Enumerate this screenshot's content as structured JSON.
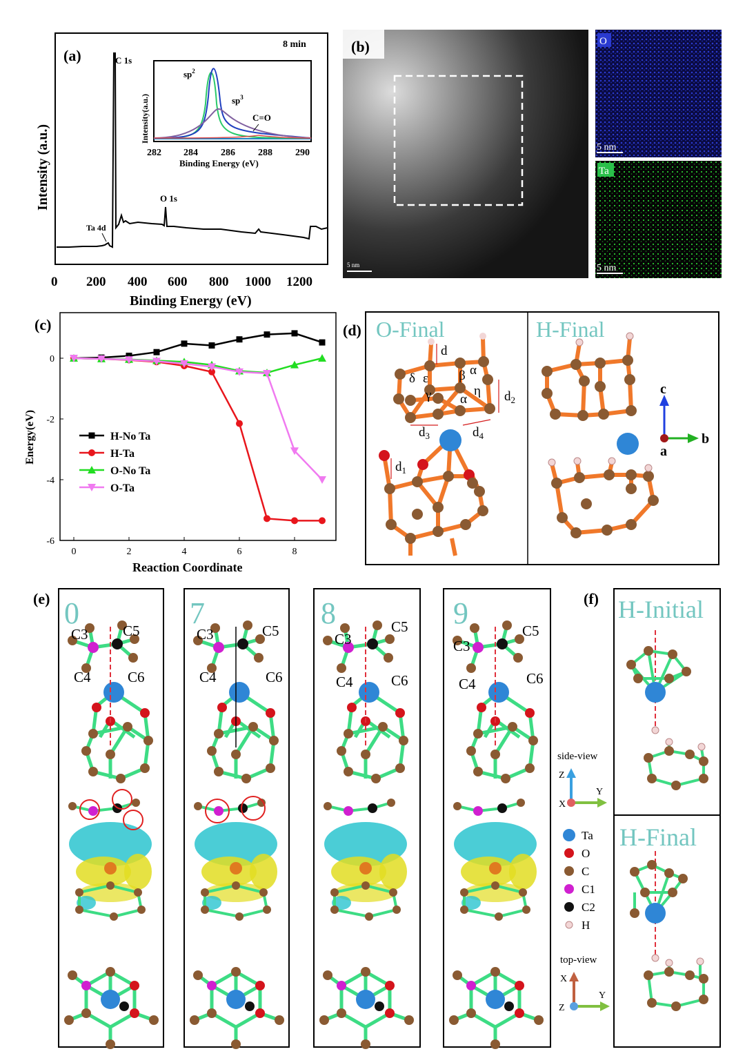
{
  "panels": {
    "a": "(a)",
    "b": "(b)",
    "c": "(c)",
    "d": "(d)",
    "e": "(e)",
    "f": "(f)"
  },
  "a": {
    "time": "8 min",
    "ylabel": "Intensity (a.u.)",
    "xlabel": "Binding Energy (eV)",
    "xticks": [
      "0",
      "200",
      "400",
      "600",
      "800",
      "1000",
      "1200"
    ],
    "peaks": {
      "c1s": "C 1s",
      "o1s": "O 1s",
      "ta4d": "Ta 4d"
    },
    "inset": {
      "ylabel": "Intensity(a.u.)",
      "xlabel": "Binding Energy (eV)",
      "xticks": [
        "282",
        "284",
        "286",
        "288",
        "290"
      ],
      "sp2": "sp",
      "sp2_sup": "2",
      "sp3": "sp",
      "sp3_sup": "3",
      "co": "C=O"
    }
  },
  "b": {
    "scale_main": "5 nm",
    "map_o": {
      "label": "O",
      "scale": "5 nm"
    },
    "map_ta": {
      "label": "Ta",
      "scale": "5 nm"
    }
  },
  "chart_data": {
    "type": "line",
    "xlabel": "Reaction Coordinate",
    "ylabel": "Energy(eV)",
    "xlim": [
      -0.5,
      9.5
    ],
    "ylim": [
      -6,
      1.5
    ],
    "xticks": [
      0,
      2,
      4,
      6,
      8
    ],
    "yticks": [
      0,
      -2,
      -4,
      -6
    ],
    "legend_position": "middle-left",
    "series": [
      {
        "name": "H-No Ta",
        "color": "#000000",
        "marker": "square",
        "x": [
          0,
          1,
          2,
          3,
          4,
          5,
          6,
          7,
          8,
          9
        ],
        "y": [
          0,
          0.02,
          0.08,
          0.2,
          0.48,
          0.42,
          0.62,
          0.78,
          0.82,
          0.52
        ]
      },
      {
        "name": "H-Ta",
        "color": "#e8161c",
        "marker": "circle",
        "x": [
          0,
          1,
          2,
          3,
          4,
          5,
          6,
          7,
          8,
          9
        ],
        "y": [
          0,
          -0.02,
          -0.06,
          -0.12,
          -0.25,
          -0.45,
          -2.15,
          -5.28,
          -5.35,
          -5.35
        ]
      },
      {
        "name": "O-No Ta",
        "color": "#22dd22",
        "marker": "triangle-up",
        "x": [
          0,
          1,
          2,
          3,
          4,
          5,
          6,
          7,
          8,
          9
        ],
        "y": [
          0,
          -0.02,
          -0.04,
          -0.08,
          -0.12,
          -0.22,
          -0.42,
          -0.48,
          -0.22,
          0.0
        ]
      },
      {
        "name": "O-Ta",
        "color": "#f07af0",
        "marker": "triangle-down",
        "x": [
          0,
          1,
          2,
          3,
          4,
          5,
          6,
          7,
          8,
          9
        ],
        "y": [
          0,
          -0.02,
          -0.05,
          -0.1,
          -0.18,
          -0.28,
          -0.45,
          -0.5,
          -3.05,
          -4.0
        ]
      }
    ]
  },
  "d": {
    "o_title": "O-Final",
    "h_title": "H-Final",
    "labels": {
      "d": "d",
      "d1": "d",
      "d1_sub": "1",
      "d2": "d",
      "d2_sub": "2",
      "d3": "d",
      "d3_sub": "3",
      "d4": "d",
      "d4_sub": "4",
      "alpha": "α",
      "beta": "β",
      "gamma": "γ",
      "delta": "δ",
      "epsilon": "ε",
      "eta": "η"
    },
    "axes": {
      "c": "c",
      "b": "b",
      "a": "a"
    }
  },
  "e": {
    "panels": [
      {
        "index": "0"
      },
      {
        "index": "7"
      },
      {
        "index": "8"
      },
      {
        "index": "9"
      }
    ],
    "atom_labels": {
      "c3": "C3",
      "c4": "C4",
      "c5": "C5",
      "c6": "C6"
    },
    "side_view": "side-view",
    "top_view": "top-view",
    "axes": {
      "z": "Z",
      "x": "X",
      "y": "Y"
    },
    "legend": [
      {
        "label": "Ta",
        "color": "#2f86d6"
      },
      {
        "label": "O",
        "color": "#d4141c"
      },
      {
        "label": "C",
        "color": "#8a5a32"
      },
      {
        "label": "C1",
        "color": "#d020d0"
      },
      {
        "label": "C2",
        "color": "#111111"
      },
      {
        "label": "H",
        "color": "#f2d6d6"
      }
    ]
  },
  "f": {
    "initial": "H-Initial",
    "final": "H-Final"
  },
  "colors": {
    "bond_green": "#3ddc84",
    "bond_orange": "#f0782a",
    "carbon": "#8a5a32",
    "teal_label": "#73c6c0",
    "iso_yellow": "#e8e020",
    "iso_cyan": "#20c0d0"
  }
}
